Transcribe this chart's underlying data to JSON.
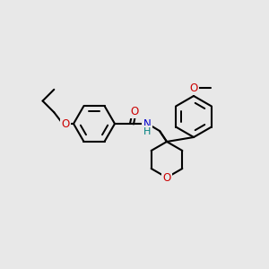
{
  "background_color": "#e8e8e8",
  "bond_color": "#000000",
  "bond_width": 1.5,
  "atom_colors": {
    "O": "#cc0000",
    "N": "#0000cc",
    "H": "#008080",
    "C": "#000000"
  },
  "font_size": 8.5,
  "fig_size": [
    3.0,
    3.0
  ],
  "dpi": 100
}
